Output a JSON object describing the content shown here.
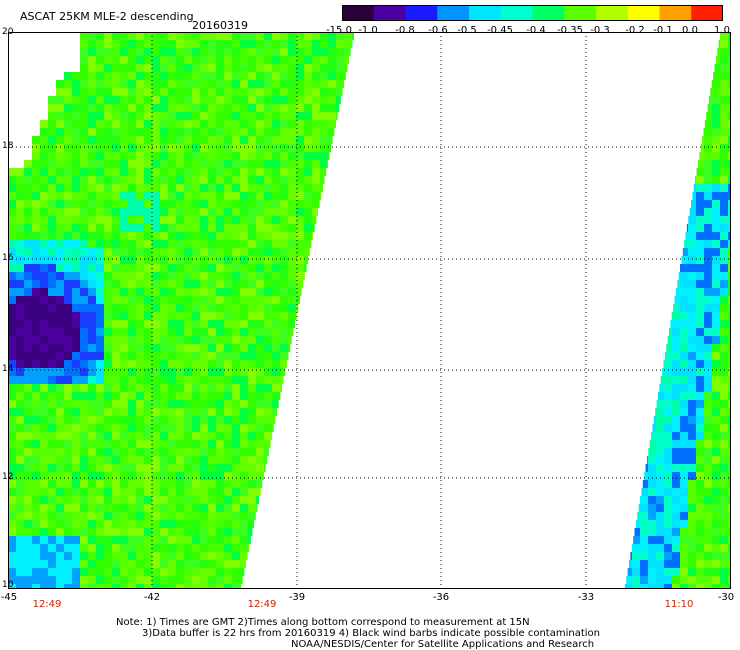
{
  "header": {
    "title": "ASCAT 25KM MLE-2 descending",
    "date": "20160319"
  },
  "colorbar": {
    "labels": [
      "-15.0",
      "-1.0",
      "-0.8",
      "-0.6",
      "-0.5",
      "-0.45",
      "-0.4",
      "-0.35",
      "-0.3",
      "-0.2",
      "-0.1",
      "0.0",
      "1.0"
    ],
    "colors": [
      "#2a0038",
      "#4b00a0",
      "#1a1aff",
      "#0096ff",
      "#00e6ff",
      "#00ffd0",
      "#00ff60",
      "#5aff00",
      "#b0ff00",
      "#ffff00",
      "#ffa000",
      "#ff2000"
    ]
  },
  "axes": {
    "lat_labels": [
      "20",
      "18",
      "16",
      "14",
      "12",
      "10"
    ],
    "lon_labels": [
      "-45",
      "-42",
      "-39",
      "-36",
      "-33",
      "-30"
    ]
  },
  "pass_times": [
    "12:49",
    "12:49",
    "11:10"
  ],
  "notes": {
    "line1": "Note: 1) Times are GMT 2)Times along bottom correspond to measurement at 15N",
    "line2": "3)Data buffer is 22 hrs from 20160319 4) Black wind barbs indicate possible contamination",
    "line3": "NOAA/NESDIS/Center for Satellite Applications and Research"
  }
}
